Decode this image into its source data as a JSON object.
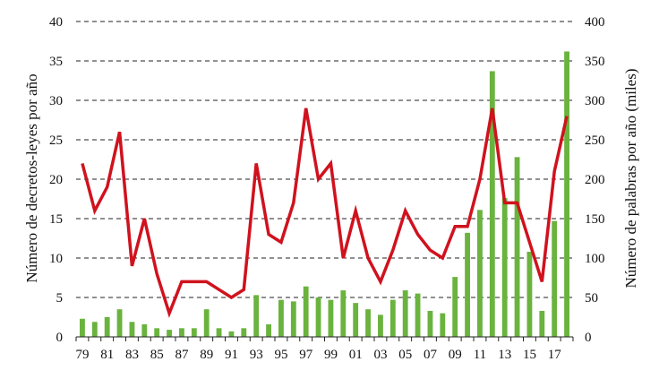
{
  "chart_data": {
    "type": "bar+line",
    "title": "",
    "xlabel": "",
    "ylabel_left": "Número de decretos-leyes por año",
    "ylabel_right": "Número de palabras por año (miles)",
    "ylim_left": [
      0,
      40
    ],
    "ylim_right": [
      0,
      400
    ],
    "yticks_left": [
      "0",
      "5",
      "10",
      "15",
      "20",
      "25",
      "30",
      "35",
      "40"
    ],
    "yticks_right": [
      "0",
      "50",
      "100",
      "150",
      "200",
      "250",
      "300",
      "350",
      "400"
    ],
    "grid": "horizontal dashed",
    "legend": "none",
    "x_tick_labels": [
      "79",
      "81",
      "83",
      "85",
      "87",
      "89",
      "91",
      "93",
      "95",
      "97",
      "99",
      "01",
      "03",
      "05",
      "07",
      "09",
      "11",
      "13",
      "15",
      "17"
    ],
    "x": [
      "1979",
      "1980",
      "1981",
      "1982",
      "1983",
      "1984",
      "1985",
      "1986",
      "1987",
      "1988",
      "1989",
      "1990",
      "1991",
      "1992",
      "1993",
      "1994",
      "1995",
      "1996",
      "1997",
      "1998",
      "1999",
      "2000",
      "2001",
      "2002",
      "2003",
      "2004",
      "2005",
      "2006",
      "2007",
      "2008",
      "2009",
      "2010",
      "2011",
      "2012",
      "2013",
      "2014",
      "2015",
      "2016",
      "2017",
      "2018"
    ],
    "series": [
      {
        "type": "bar",
        "axis": "right",
        "color": "#6ab33e",
        "values": [
          23,
          19,
          25,
          35,
          19,
          16,
          11,
          9,
          11,
          11,
          35,
          11,
          7,
          11,
          53,
          16,
          47,
          45,
          64,
          50,
          47,
          59,
          43,
          35,
          28,
          47,
          59,
          55,
          33,
          30,
          76,
          132,
          161,
          337,
          176,
          228,
          108,
          33,
          147,
          362
        ]
      },
      {
        "type": "line",
        "axis": "left",
        "color": "#d0121e",
        "values": [
          22,
          16,
          19,
          26,
          9,
          15,
          8,
          3,
          7,
          7,
          7,
          6,
          5,
          6,
          22,
          13,
          12,
          17,
          29,
          20,
          22,
          10,
          16,
          10,
          7,
          11,
          16,
          13,
          11,
          10,
          14,
          14,
          20,
          29,
          17,
          17,
          12,
          7,
          21,
          28
        ]
      }
    ]
  }
}
